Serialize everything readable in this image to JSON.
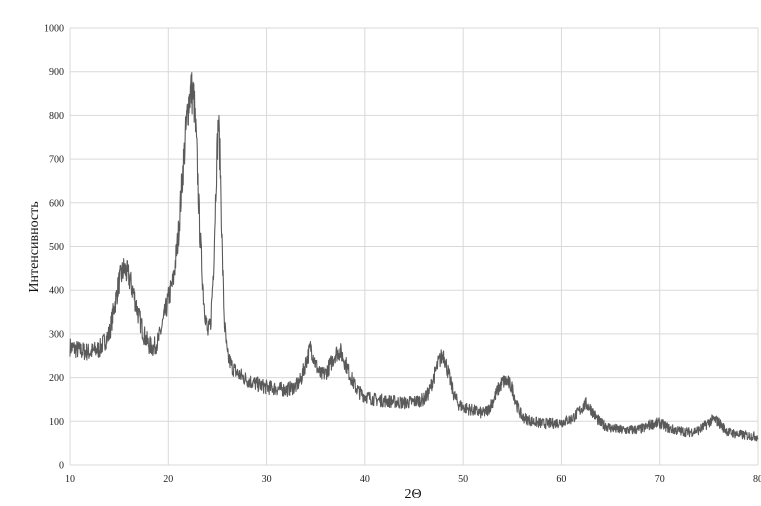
{
  "chart_data": {
    "type": "line",
    "title": "",
    "xlabel": "2Θ",
    "ylabel": "Интенсивность",
    "xlim": [
      10,
      80
    ],
    "ylim": [
      0,
      1000
    ],
    "x_ticks": [
      10,
      20,
      30,
      40,
      50,
      60,
      70,
      80
    ],
    "y_ticks": [
      0,
      100,
      200,
      300,
      400,
      500,
      600,
      700,
      800,
      900,
      1000
    ],
    "grid": true,
    "legend": "none",
    "line_color": "#5a5a5a",
    "series": [
      {
        "x": [
          10,
          11,
          12,
          13,
          14,
          14.5,
          15,
          15.5,
          16,
          16.5,
          17,
          17.5,
          18,
          18.5,
          19,
          19.5,
          20,
          20.5,
          21,
          21.5,
          22,
          22.3,
          22.6,
          22.9,
          23.2,
          23.6,
          24,
          24.3,
          24.6,
          24.9,
          25.1,
          25.3,
          25.5,
          25.7,
          26,
          26.5,
          27,
          28,
          29,
          30,
          31,
          32,
          33,
          33.5,
          34,
          34.5,
          35,
          35.5,
          36,
          36.5,
          37,
          37.5,
          38,
          38.5,
          39,
          39.5,
          40,
          41,
          42,
          43,
          44,
          45,
          46,
          46.5,
          47,
          47.5,
          48,
          48.5,
          49,
          49.5,
          50,
          51,
          52,
          52.5,
          53,
          53.5,
          54,
          54.5,
          55,
          55.5,
          56,
          57,
          58,
          59,
          60,
          61,
          61.5,
          62,
          62.5,
          63,
          63.5,
          64,
          65,
          66,
          67,
          68,
          68.5,
          69,
          69.5,
          70,
          70.5,
          71,
          72,
          73,
          74,
          74.5,
          75,
          75.5,
          76,
          76.5,
          77,
          78,
          79,
          80
        ],
        "y": [
          270,
          262,
          258,
          265,
          300,
          360,
          420,
          450,
          430,
          390,
          340,
          300,
          275,
          268,
          285,
          330,
          380,
          420,
          520,
          680,
          820,
          860,
          840,
          720,
          540,
          380,
          300,
          320,
          450,
          680,
          790,
          680,
          480,
          330,
          250,
          225,
          210,
          195,
          185,
          178,
          175,
          172,
          180,
          195,
          235,
          270,
          230,
          205,
          210,
          230,
          255,
          260,
          235,
          205,
          180,
          165,
          158,
          150,
          147,
          145,
          142,
          145,
          150,
          165,
          200,
          235,
          255,
          210,
          165,
          140,
          132,
          125,
          118,
          125,
          145,
          170,
          190,
          192,
          175,
          135,
          110,
          100,
          95,
          95,
          98,
          105,
          115,
          128,
          140,
          128,
          110,
          95,
          85,
          80,
          80,
          82,
          85,
          92,
          95,
          96,
          90,
          83,
          78,
          75,
          80,
          88,
          98,
          105,
          98,
          85,
          75,
          70,
          67,
          65
        ]
      }
    ]
  }
}
